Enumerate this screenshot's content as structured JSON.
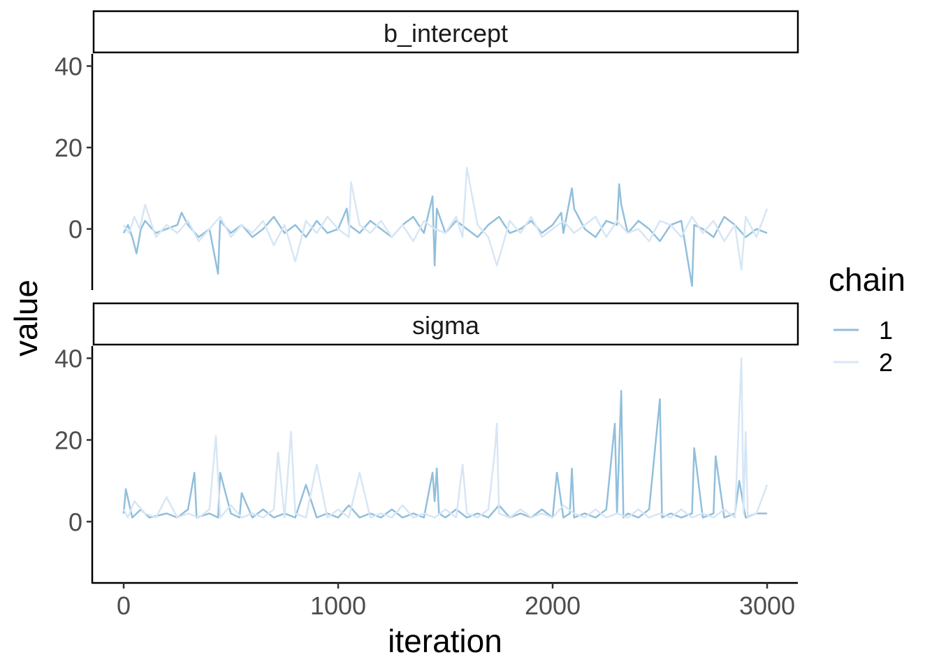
{
  "chart_data": {
    "type": "line",
    "xlabel": "iteration",
    "ylabel": "value",
    "x_ticks": [
      "0",
      "1000",
      "2000",
      "3000"
    ],
    "y_ticks": [
      "0",
      "20",
      "40"
    ],
    "xlim": [
      0,
      3000
    ],
    "ylim": [
      -15,
      43
    ],
    "grid": false,
    "legend": {
      "title": "chain",
      "position": "right",
      "entries": [
        {
          "label": "1",
          "color": "#91bfdb"
        },
        {
          "label": "2",
          "color": "#d7e6f5"
        }
      ]
    },
    "panels": [
      {
        "strip": "b_intercept",
        "series": [
          {
            "name": "1",
            "color": "#91bfdb",
            "x": [
              0,
              20,
              40,
              60,
              80,
              100,
              150,
              200,
              250,
              270,
              300,
              350,
              400,
              440,
              450,
              500,
              550,
              600,
              650,
              700,
              750,
              800,
              850,
              900,
              950,
              1000,
              1040,
              1050,
              1100,
              1150,
              1200,
              1250,
              1300,
              1350,
              1400,
              1440,
              1450,
              1460,
              1500,
              1550,
              1600,
              1650,
              1700,
              1750,
              1800,
              1850,
              1900,
              1950,
              2000,
              2040,
              2050,
              2090,
              2100,
              2150,
              2200,
              2250,
              2300,
              2310,
              2320,
              2350,
              2400,
              2450,
              2500,
              2550,
              2600,
              2650,
              2660,
              2700,
              2750,
              2800,
              2850,
              2900,
              2950,
              3000
            ],
            "y": [
              -1,
              1,
              -2,
              -6,
              0,
              2,
              -1,
              0,
              1,
              4,
              1,
              -2,
              0,
              -11,
              2,
              -1,
              1,
              -2,
              0,
              3,
              -1,
              1,
              -2,
              2,
              -1,
              0,
              5,
              1,
              -1,
              2,
              0,
              -2,
              1,
              3,
              -1,
              8,
              -9,
              5,
              -1,
              2,
              0,
              -2,
              1,
              3,
              -1,
              0,
              2,
              -1,
              1,
              4,
              -1,
              10,
              5,
              0,
              -2,
              2,
              1,
              11,
              6,
              -1,
              2,
              0,
              -3,
              1,
              2,
              -14,
              1,
              0,
              -2,
              3,
              1,
              -2,
              0,
              -1
            ]
          },
          {
            "name": "2",
            "color": "#d7e6f5",
            "x": [
              0,
              25,
              50,
              75,
              100,
              150,
              200,
              250,
              300,
              350,
              400,
              450,
              500,
              550,
              600,
              650,
              700,
              750,
              800,
              850,
              900,
              950,
              1000,
              1050,
              1060,
              1100,
              1150,
              1200,
              1250,
              1300,
              1350,
              1400,
              1450,
              1500,
              1550,
              1580,
              1600,
              1650,
              1700,
              1740,
              1800,
              1850,
              1900,
              1950,
              2000,
              2050,
              2100,
              2150,
              2200,
              2250,
              2300,
              2350,
              2400,
              2450,
              2500,
              2550,
              2600,
              2650,
              2700,
              2750,
              2800,
              2850,
              2880,
              2900,
              2950,
              3000
            ],
            "y": [
              1,
              -1,
              3,
              0,
              6,
              -2,
              1,
              -1,
              2,
              -3,
              0,
              3,
              -2,
              1,
              -1,
              2,
              -4,
              1,
              -8,
              2,
              -1,
              3,
              0,
              -2,
              11.5,
              1,
              -1,
              2,
              -2,
              1,
              -3,
              2,
              0,
              -1,
              3,
              -2,
              15,
              1,
              -2,
              -9,
              2,
              -1,
              3,
              -2,
              0,
              2,
              -1,
              1,
              3,
              -2,
              2,
              -1,
              0,
              -3,
              2,
              1,
              -2,
              3,
              -1,
              2,
              -3,
              1,
              -10,
              3,
              -2,
              5
            ]
          }
        ]
      },
      {
        "strip": "sigma",
        "series": [
          {
            "name": "1",
            "color": "#91bfdb",
            "x": [
              0,
              10,
              40,
              80,
              120,
              200,
              250,
              300,
              330,
              340,
              400,
              440,
              450,
              500,
              540,
              550,
              600,
              650,
              700,
              750,
              800,
              850,
              900,
              950,
              1000,
              1050,
              1100,
              1150,
              1200,
              1250,
              1300,
              1350,
              1400,
              1440,
              1450,
              1460,
              1470,
              1500,
              1550,
              1600,
              1650,
              1700,
              1750,
              1800,
              1850,
              1900,
              1950,
              2000,
              2020,
              2050,
              2080,
              2090,
              2100,
              2150,
              2200,
              2250,
              2290,
              2300,
              2320,
              2330,
              2350,
              2400,
              2450,
              2500,
              2510,
              2550,
              2600,
              2650,
              2660,
              2700,
              2750,
              2760,
              2800,
              2850,
              2870,
              2900,
              2950,
              3000
            ],
            "y": [
              2,
              8,
              1,
              3,
              1,
              2,
              1,
              3,
              12,
              1,
              2,
              1,
              12,
              2,
              1,
              7,
              1,
              3,
              1,
              2,
              1,
              9,
              1,
              2,
              1,
              4,
              1,
              2,
              1,
              3,
              1,
              2,
              1,
              12,
              5,
              13,
              2,
              1,
              3,
              1,
              2,
              1,
              4,
              1,
              2,
              1,
              3,
              1,
              12,
              1,
              2,
              13,
              1,
              2,
              1,
              3,
              24,
              2,
              32,
              1,
              2,
              1,
              3,
              30,
              1,
              2,
              1,
              2,
              18,
              1,
              2,
              16,
              1,
              2,
              10,
              1,
              2,
              2
            ]
          },
          {
            "name": "2",
            "color": "#d7e6f5",
            "x": [
              0,
              20,
              50,
              100,
              150,
              200,
              250,
              300,
              350,
              400,
              430,
              450,
              500,
              550,
              600,
              650,
              700,
              720,
              750,
              780,
              800,
              850,
              900,
              950,
              1000,
              1050,
              1100,
              1150,
              1200,
              1250,
              1300,
              1350,
              1400,
              1450,
              1500,
              1550,
              1580,
              1600,
              1650,
              1700,
              1730,
              1740,
              1750,
              1800,
              1850,
              1900,
              1950,
              2000,
              2050,
              2100,
              2150,
              2200,
              2250,
              2300,
              2350,
              2400,
              2450,
              2500,
              2550,
              2600,
              2650,
              2700,
              2750,
              2800,
              2850,
              2880,
              2890,
              2900,
              2910,
              2950,
              3000
            ],
            "y": [
              3,
              1,
              5,
              2,
              1,
              6,
              1,
              2,
              1,
              3,
              21,
              1,
              4,
              1,
              2,
              1,
              3,
              17,
              1,
              22,
              2,
              1,
              14,
              1,
              3,
              1,
              12,
              1,
              2,
              1,
              4,
              1,
              2,
              1,
              3,
              1,
              14,
              2,
              1,
              3,
              17,
              24,
              2,
              1,
              3,
              1,
              2,
              1,
              4,
              2,
              1,
              3,
              1,
              2,
              1,
              3,
              1,
              2,
              1,
              3,
              1,
              2,
              1,
              3,
              1,
              40,
              2,
              22,
              1,
              2,
              9
            ]
          }
        ]
      }
    ]
  }
}
